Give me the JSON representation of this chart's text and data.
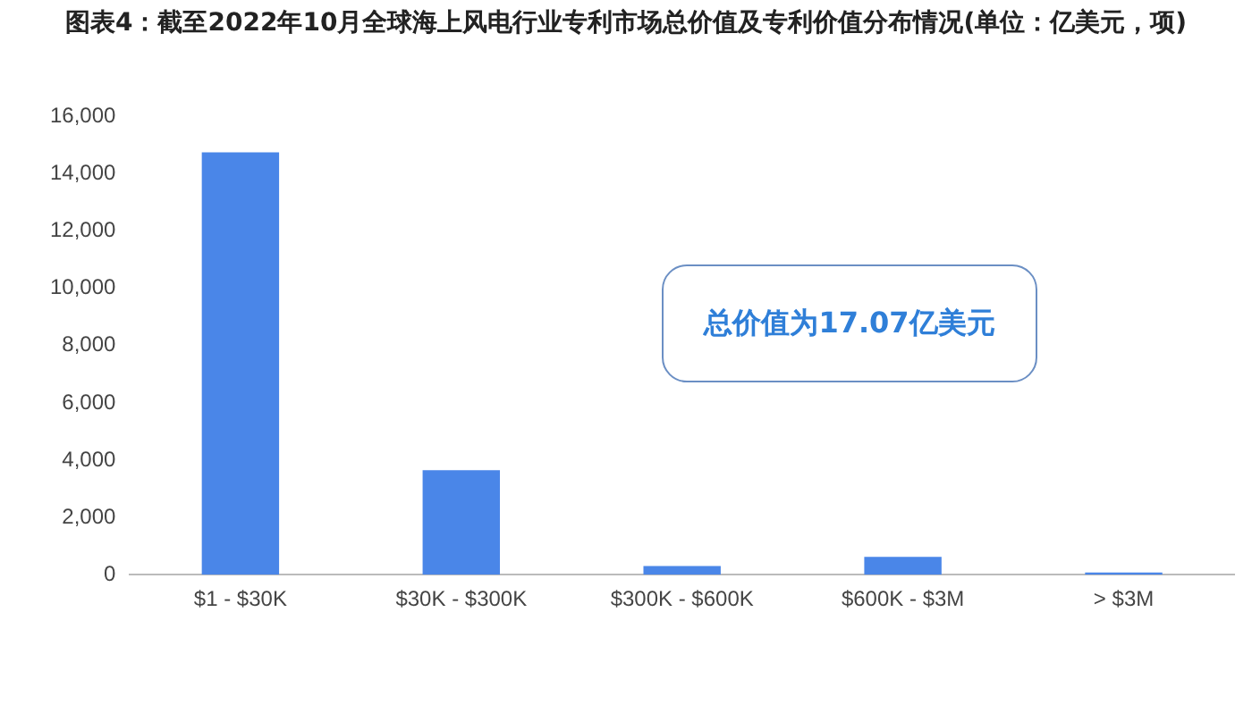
{
  "chart_data": {
    "type": "bar",
    "title": "图表4：截至2022年10月全球海上风电行业专利市场总价值及专利价值分布情况(单位：亿美元，项)",
    "categories": [
      "$1 - $30K",
      "$30K - $300K",
      "$300K - $600K",
      "$600K - $3M",
      "> $3M"
    ],
    "values": [
      14750,
      3650,
      300,
      620,
      80
    ],
    "color": "#4a86e8",
    "ylim": [
      0,
      16000
    ],
    "yticks": [
      0,
      {
        "value": 2000,
        "label": "2,000"
      },
      {
        "value": 4000,
        "label": "4,000"
      },
      {
        "value": 6000,
        "label": "6,000"
      },
      {
        "value": 8000,
        "label": "8,000"
      },
      {
        "value": 10000,
        "label": "10,000"
      },
      {
        "value": 12000,
        "label": "12,000"
      },
      {
        "value": 14000,
        "label": "14,000"
      },
      {
        "value": 16000,
        "label": "16,000"
      }
    ],
    "grid": false,
    "legend": false,
    "annotations": [
      "总价值为17.07亿美元"
    ]
  }
}
